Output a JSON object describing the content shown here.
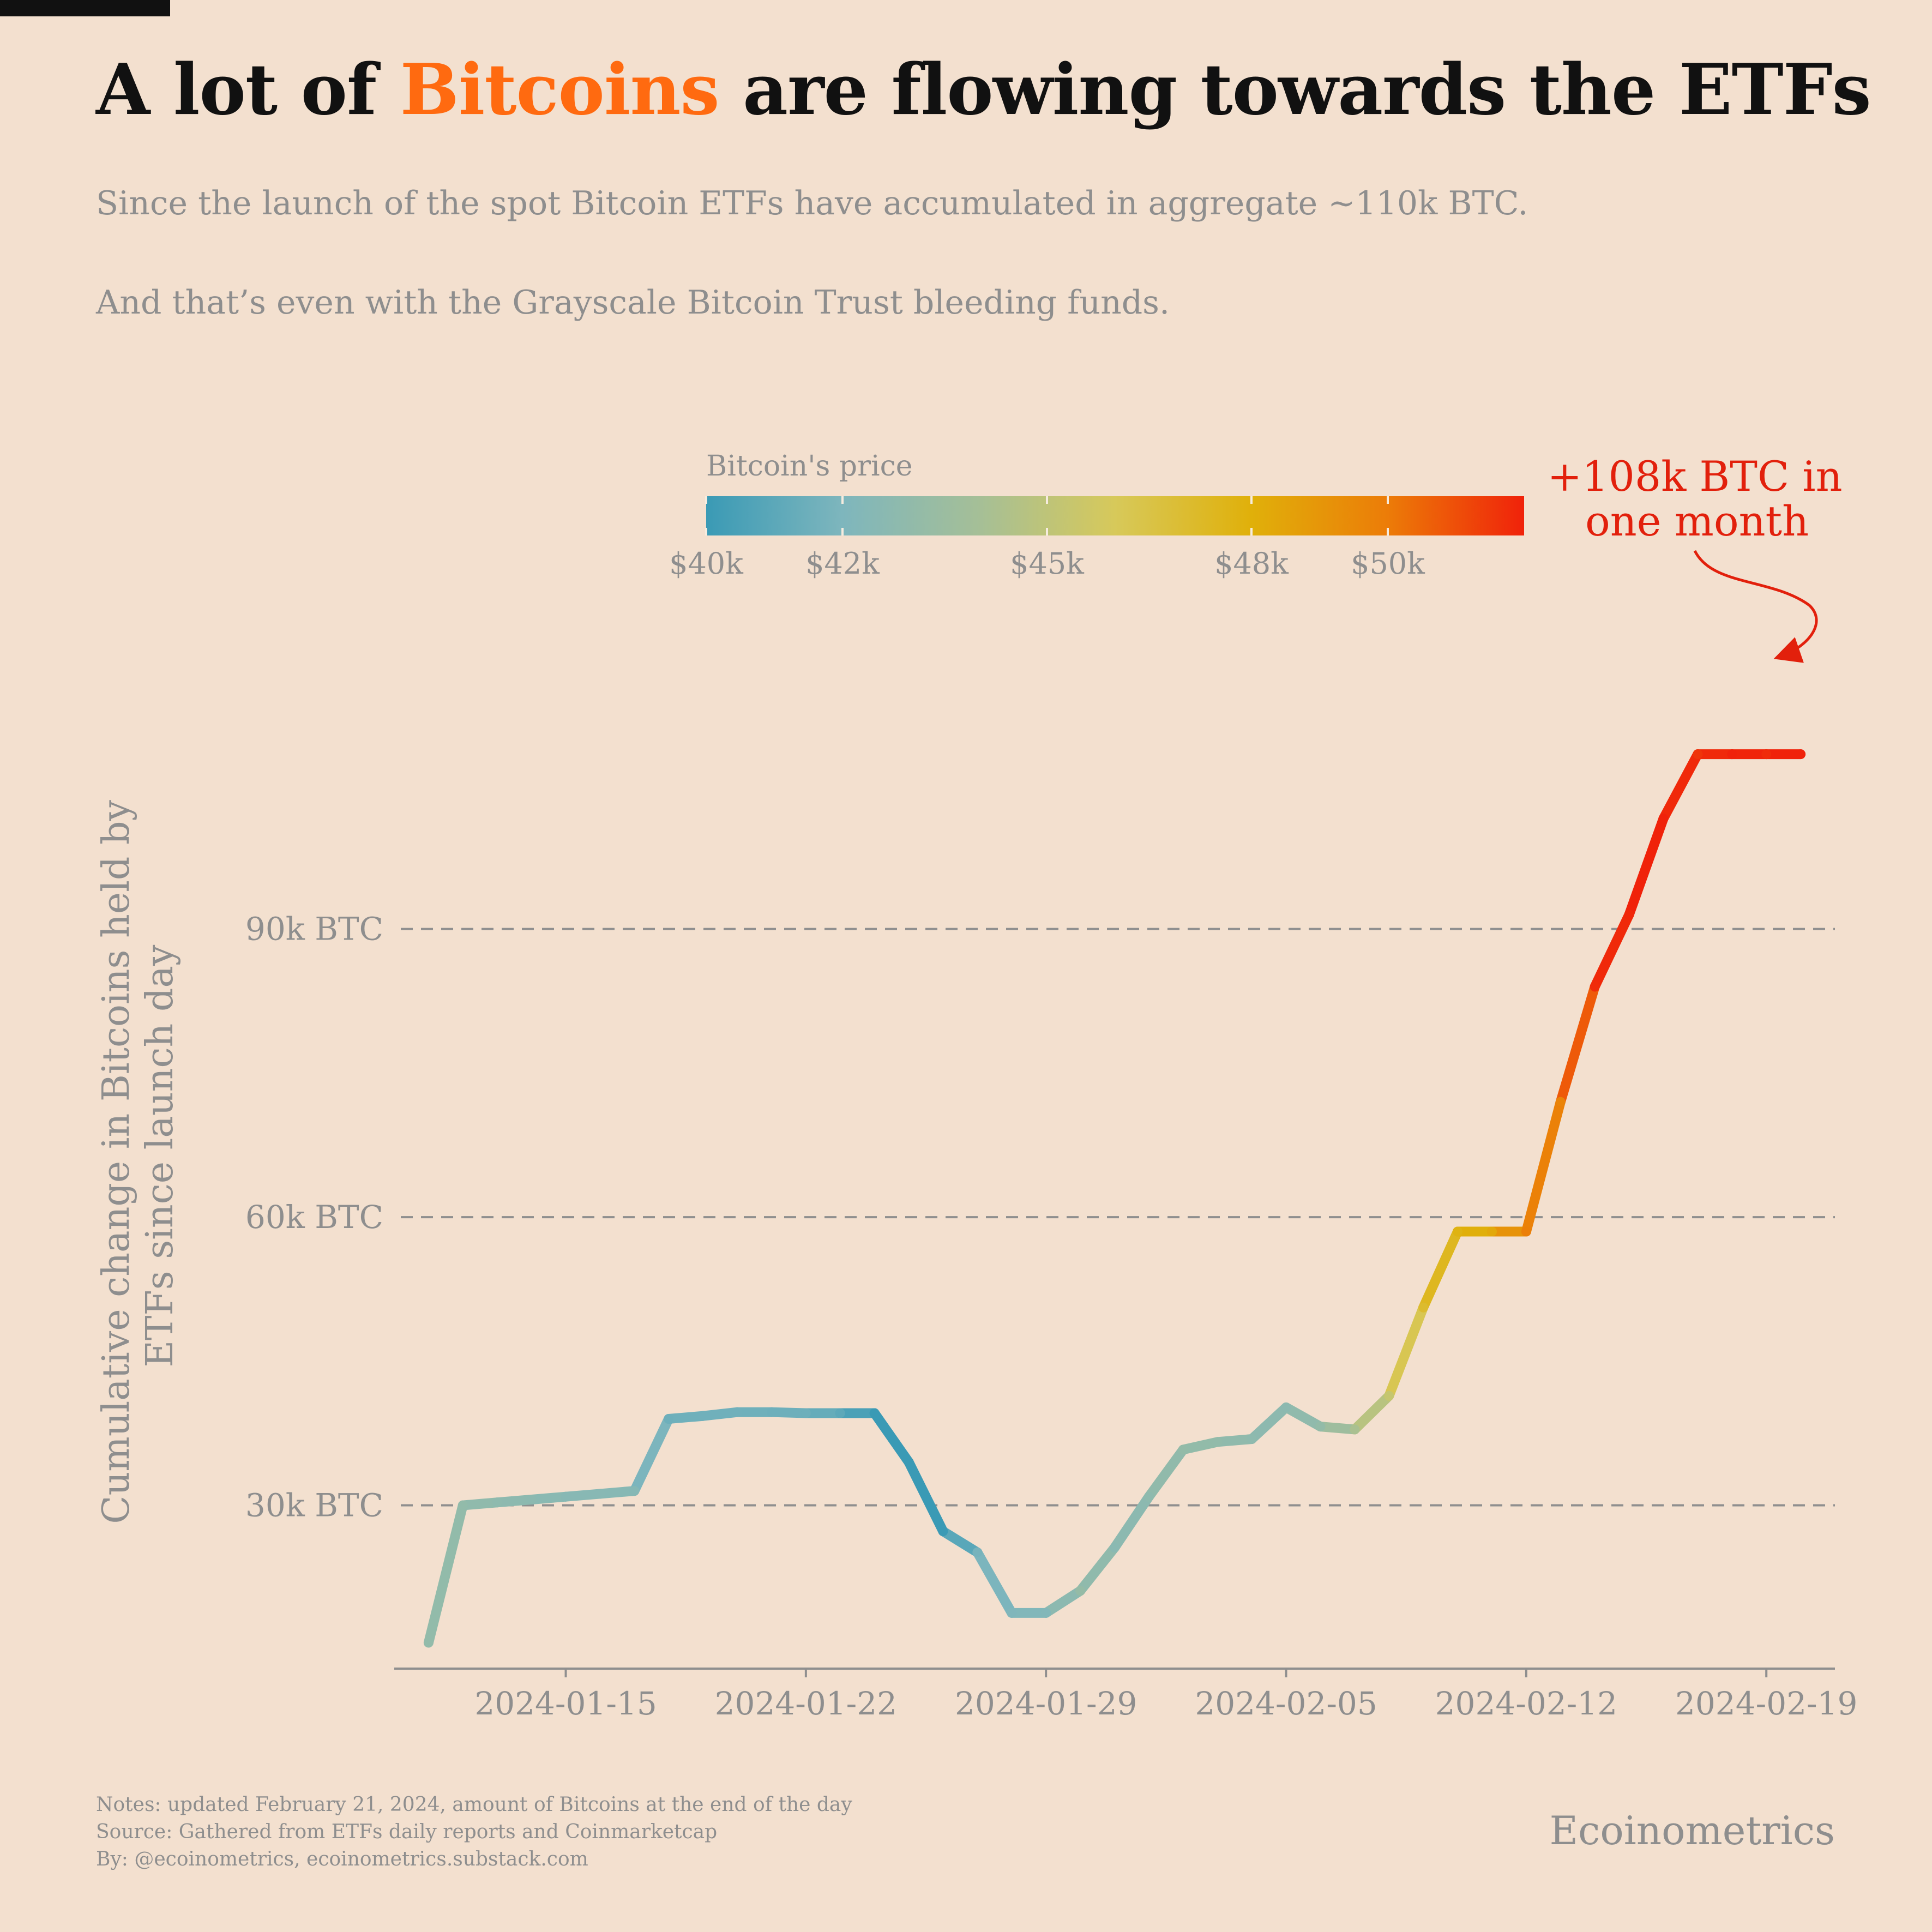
{
  "header": {
    "title_pre": "A lot of ",
    "title_highlight": "Bitcoins",
    "title_post": " are flowing towards the ETFs",
    "subtitle_1": "Since the launch of the spot Bitcoin ETFs have accumulated in aggregate ~110k BTC.",
    "subtitle_2": "And that’s even with the Grayscale Bitcoin Trust bleeding funds.",
    "highlight_color": "#ff6a10"
  },
  "footer": {
    "notes": "Notes: updated February 21, 2024, amount of Bitcoins at the end of the day",
    "source": "Source: Gathered from ETFs daily reports and Coinmarketcap",
    "by": "By: @ecoinometrics, ecoinometrics.substack.com",
    "brand": "Ecoinometrics"
  },
  "chart_data": {
    "type": "line",
    "ylabel_line1": "Cumulative change in Bitcoins held by",
    "ylabel_line2": "ETFs since launch day",
    "xlabel": "",
    "x_ticks": [
      "2024-01-15",
      "2024-01-22",
      "2024-01-29",
      "2024-02-05",
      "2024-02-12",
      "2024-02-19"
    ],
    "y_ticks": [
      30,
      60,
      90
    ],
    "y_tick_labels": [
      "30k BTC",
      "60k BTC",
      "90k BTC"
    ],
    "ylim": [
      13,
      122
    ],
    "xlim": [
      "2024-01-10",
      "2024-02-21"
    ],
    "grid": "horizontal dashed",
    "colorbar": {
      "title": "Bitcoin's price",
      "min": 40,
      "max": 52,
      "tick_values": [
        40,
        42,
        45,
        48,
        50
      ],
      "tick_labels": [
        "$40k",
        "$42k",
        "$45k",
        "$48k",
        "$50k"
      ],
      "gradient_colors": [
        "#3a9ab5",
        "#7eb6bd",
        "#a5bf97",
        "#d7c95a",
        "#e0b00a",
        "#ec7c08",
        "#f0220a"
      ]
    },
    "annotation": {
      "line1": "+108k BTC in",
      "line2": "one month",
      "color": "#e2200c"
    },
    "series": [
      {
        "points": [
          {
            "date": "2024-01-11",
            "btc_k": 15.7,
            "price": 43.0
          },
          {
            "date": "2024-01-12",
            "btc_k": 30.0,
            "price": 43.0
          },
          {
            "date": "2024-01-13",
            "btc_k": 30.3,
            "price": 42.8
          },
          {
            "date": "2024-01-14",
            "btc_k": 30.6,
            "price": 42.7
          },
          {
            "date": "2024-01-15",
            "btc_k": 30.9,
            "price": 42.5
          },
          {
            "date": "2024-01-16",
            "btc_k": 31.2,
            "price": 42.5
          },
          {
            "date": "2024-01-17",
            "btc_k": 31.5,
            "price": 42.4
          },
          {
            "date": "2024-01-18",
            "btc_k": 39.0,
            "price": 41.5
          },
          {
            "date": "2024-01-19",
            "btc_k": 39.3,
            "price": 41.6
          },
          {
            "date": "2024-01-20",
            "btc_k": 39.7,
            "price": 41.6
          },
          {
            "date": "2024-01-21",
            "btc_k": 39.7,
            "price": 41.5
          },
          {
            "date": "2024-01-22",
            "btc_k": 39.6,
            "price": 41.5
          },
          {
            "date": "2024-01-23",
            "btc_k": 39.6,
            "price": 41.0
          },
          {
            "date": "2024-01-24",
            "btc_k": 39.6,
            "price": 40.0
          },
          {
            "date": "2024-01-25",
            "btc_k": 34.5,
            "price": 40.0
          },
          {
            "date": "2024-01-26",
            "btc_k": 27.3,
            "price": 40.0
          },
          {
            "date": "2024-01-27",
            "btc_k": 25.1,
            "price": 41.8
          },
          {
            "date": "2024-01-28",
            "btc_k": 18.8,
            "price": 42.1
          },
          {
            "date": "2024-01-29",
            "btc_k": 18.8,
            "price": 42.2
          },
          {
            "date": "2024-01-30",
            "btc_k": 21.1,
            "price": 43.2
          },
          {
            "date": "2024-01-31",
            "btc_k": 25.6,
            "price": 42.6
          },
          {
            "date": "2024-02-01",
            "btc_k": 30.9,
            "price": 42.8
          },
          {
            "date": "2024-02-02",
            "btc_k": 35.8,
            "price": 43.1
          },
          {
            "date": "2024-02-03",
            "btc_k": 36.6,
            "price": 43.0
          },
          {
            "date": "2024-02-04",
            "btc_k": 36.9,
            "price": 42.8
          },
          {
            "date": "2024-02-05",
            "btc_k": 40.2,
            "price": 42.7
          },
          {
            "date": "2024-02-06",
            "btc_k": 38.2,
            "price": 43.1
          },
          {
            "date": "2024-02-07",
            "btc_k": 37.9,
            "price": 44.2
          },
          {
            "date": "2024-02-08",
            "btc_k": 41.4,
            "price": 45.3
          },
          {
            "date": "2024-02-09",
            "btc_k": 50.6,
            "price": 47.1
          },
          {
            "date": "2024-02-10",
            "btc_k": 58.5,
            "price": 47.8
          },
          {
            "date": "2024-02-11",
            "btc_k": 58.5,
            "price": 48.3
          },
          {
            "date": "2024-02-12",
            "btc_k": 58.5,
            "price": 49.9
          },
          {
            "date": "2024-02-13",
            "btc_k": 72.0,
            "price": 49.7
          },
          {
            "date": "2024-02-14",
            "btc_k": 84.0,
            "price": 51.8
          },
          {
            "date": "2024-02-15",
            "btc_k": 91.5,
            "price": 51.9
          },
          {
            "date": "2024-02-16",
            "btc_k": 101.5,
            "price": 52.1
          },
          {
            "date": "2024-02-17",
            "btc_k": 108.2,
            "price": 51.6
          },
          {
            "date": "2024-02-18",
            "btc_k": 108.2,
            "price": 52.1
          },
          {
            "date": "2024-02-19",
            "btc_k": 108.2,
            "price": 51.8
          },
          {
            "date": "2024-02-20",
            "btc_k": 108.2,
            "price": 52.3
          }
        ]
      }
    ]
  }
}
